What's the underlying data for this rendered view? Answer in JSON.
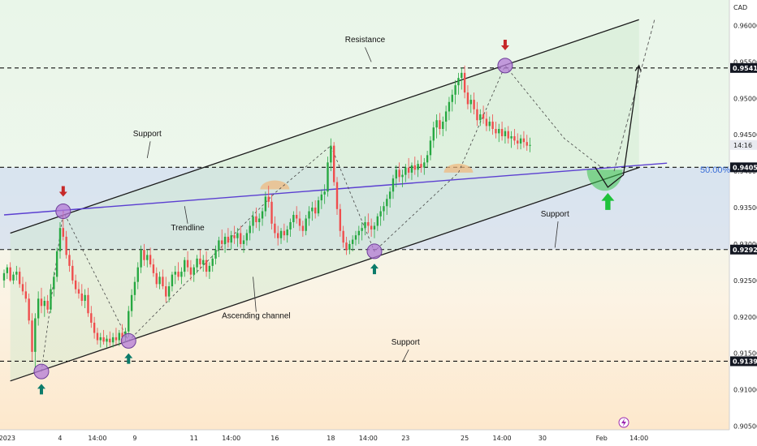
{
  "chart_data": {
    "type": "candlestick",
    "currency": "CAD",
    "ylim": [
      0.9045,
      0.9635
    ],
    "y_ticks": [
      0.96,
      0.955,
      0.95,
      0.945,
      0.94,
      0.935,
      0.93,
      0.925,
      0.92,
      0.915,
      0.91,
      0.905
    ],
    "y_tick_labels": [
      "0.96000",
      "0.95500",
      "0.95000",
      "0.94500",
      "0.94000",
      "0.93500",
      "0.93000",
      "0.92500",
      "0.92000",
      "0.91500",
      "0.91000",
      "0.90500"
    ],
    "x_range": [
      0,
      220
    ],
    "x_ticks": [
      {
        "x": 1,
        "label": "2023"
      },
      {
        "x": 18,
        "label": "4"
      },
      {
        "x": 30,
        "label": "14:00"
      },
      {
        "x": 42,
        "label": "9"
      },
      {
        "x": 61,
        "label": "11"
      },
      {
        "x": 73,
        "label": "14:00"
      },
      {
        "x": 87,
        "label": "16"
      },
      {
        "x": 105,
        "label": "18"
      },
      {
        "x": 117,
        "label": "14:00"
      },
      {
        "x": 129,
        "label": "23"
      },
      {
        "x": 148,
        "label": "25"
      },
      {
        "x": 160,
        "label": "14:00"
      },
      {
        "x": 173,
        "label": "30"
      },
      {
        "x": 192,
        "label": "Feb"
      },
      {
        "x": 204,
        "label": "14:00"
      }
    ],
    "price_tags": [
      {
        "value": 0.95417,
        "label": "0.95417",
        "style": "dark"
      },
      {
        "value": 0.94053,
        "label": "0.94053",
        "style": "dark"
      },
      {
        "value": 0.92924,
        "label": "0.92924",
        "style": "dark"
      },
      {
        "value": 0.91391,
        "label": "0.91391",
        "style": "dark"
      }
    ],
    "current_time_tag": {
      "value": 0.9436,
      "label": "14:16"
    },
    "horizontal_levels": [
      0.95417,
      0.94053,
      0.92924,
      0.91391
    ],
    "fib_level": {
      "value": 0.94025,
      "label": "50.00%"
    },
    "channel": {
      "upper": [
        [
          2,
          0.9315
        ],
        [
          204,
          0.9608
        ]
      ],
      "lower": [
        [
          2,
          0.9112
        ],
        [
          204,
          0.9405
        ]
      ]
    },
    "trendline": [
      [
        0,
        0.934
      ],
      [
        213,
        0.9411
      ]
    ],
    "annotations": [
      {
        "text": "Resistance",
        "x": 116,
        "y": 0.9577
      },
      {
        "text": "Support",
        "x": 46,
        "y": 0.9448
      },
      {
        "text": "Trendline",
        "x": 59,
        "y": 0.9319
      },
      {
        "text": "Ascending channel",
        "x": 81,
        "y": 0.9198
      },
      {
        "text": "Support",
        "x": 129,
        "y": 0.9162
      },
      {
        "text": "Support",
        "x": 177,
        "y": 0.9338
      }
    ],
    "candles": [
      [
        0.925,
        0.9265,
        0.924,
        0.926
      ],
      [
        0.926,
        0.9272,
        0.9252,
        0.9268
      ],
      [
        0.9268,
        0.9275,
        0.9248,
        0.925
      ],
      [
        0.925,
        0.9262,
        0.9245,
        0.9258
      ],
      [
        0.9258,
        0.927,
        0.925,
        0.9262
      ],
      [
        0.9262,
        0.9268,
        0.924,
        0.9245
      ],
      [
        0.9245,
        0.9255,
        0.923,
        0.9235
      ],
      [
        0.9235,
        0.9248,
        0.922,
        0.9225
      ],
      [
        0.9225,
        0.9232,
        0.919,
        0.9195
      ],
      [
        0.9195,
        0.9205,
        0.914,
        0.9152
      ],
      [
        0.9152,
        0.9205,
        0.913,
        0.9198
      ],
      [
        0.9198,
        0.9235,
        0.9188,
        0.9225
      ],
      [
        0.9225,
        0.924,
        0.9205,
        0.9215
      ],
      [
        0.9215,
        0.9228,
        0.92,
        0.9222
      ],
      [
        0.9222,
        0.923,
        0.9205,
        0.921
      ],
      [
        0.921,
        0.9245,
        0.9205,
        0.9238
      ],
      [
        0.9238,
        0.9262,
        0.9228,
        0.9255
      ],
      [
        0.9255,
        0.9295,
        0.9248,
        0.929
      ],
      [
        0.929,
        0.933,
        0.928,
        0.9322
      ],
      [
        0.9322,
        0.9345,
        0.9305,
        0.931
      ],
      [
        0.931,
        0.9318,
        0.928,
        0.9285
      ],
      [
        0.9285,
        0.9292,
        0.9262,
        0.927
      ],
      [
        0.927,
        0.9278,
        0.9245,
        0.925
      ],
      [
        0.925,
        0.9258,
        0.9232,
        0.9238
      ],
      [
        0.9238,
        0.9248,
        0.9225,
        0.9232
      ],
      [
        0.9232,
        0.9245,
        0.9215,
        0.9222
      ],
      [
        0.9222,
        0.9238,
        0.9212,
        0.923
      ],
      [
        0.923,
        0.924,
        0.92,
        0.9205
      ],
      [
        0.9205,
        0.9215,
        0.9185,
        0.9192
      ],
      [
        0.9192,
        0.92,
        0.917,
        0.9178
      ],
      [
        0.9178,
        0.9185,
        0.9162,
        0.9168
      ],
      [
        0.9168,
        0.9178,
        0.9158,
        0.9172
      ],
      [
        0.9172,
        0.9182,
        0.9162,
        0.9166
      ],
      [
        0.9166,
        0.9175,
        0.9158,
        0.917
      ],
      [
        0.917,
        0.918,
        0.916,
        0.9165
      ],
      [
        0.9165,
        0.9178,
        0.9158,
        0.9172
      ],
      [
        0.9172,
        0.9185,
        0.9162,
        0.9168
      ],
      [
        0.9168,
        0.9182,
        0.916,
        0.9178
      ],
      [
        0.9178,
        0.919,
        0.9165,
        0.9172
      ],
      [
        0.9172,
        0.9185,
        0.9165,
        0.918
      ],
      [
        0.918,
        0.9215,
        0.9172,
        0.9208
      ],
      [
        0.9208,
        0.9238,
        0.92,
        0.923
      ],
      [
        0.923,
        0.9255,
        0.9222,
        0.9248
      ],
      [
        0.9248,
        0.9275,
        0.9238,
        0.9268
      ],
      [
        0.9268,
        0.9298,
        0.926,
        0.9292
      ],
      [
        0.9292,
        0.93,
        0.927,
        0.9278
      ],
      [
        0.9278,
        0.9292,
        0.9268,
        0.9285
      ],
      [
        0.9285,
        0.9295,
        0.9268,
        0.9272
      ],
      [
        0.9272,
        0.928,
        0.9255,
        0.926
      ],
      [
        0.926,
        0.9268,
        0.924,
        0.9245
      ],
      [
        0.9245,
        0.9262,
        0.9238,
        0.9255
      ],
      [
        0.9255,
        0.9265,
        0.9238,
        0.9242
      ],
      [
        0.9242,
        0.9255,
        0.922,
        0.9228
      ],
      [
        0.9228,
        0.9248,
        0.922,
        0.9242
      ],
      [
        0.9242,
        0.9262,
        0.9235,
        0.9258
      ],
      [
        0.9258,
        0.927,
        0.9245,
        0.9262
      ],
      [
        0.9262,
        0.9275,
        0.925,
        0.9255
      ],
      [
        0.9255,
        0.9268,
        0.9245,
        0.9262
      ],
      [
        0.9262,
        0.9282,
        0.9255,
        0.9278
      ],
      [
        0.9278,
        0.929,
        0.9262,
        0.9268
      ],
      [
        0.9268,
        0.9278,
        0.925,
        0.9258
      ],
      [
        0.9258,
        0.9272,
        0.9248,
        0.9268
      ],
      [
        0.9268,
        0.9285,
        0.926,
        0.928
      ],
      [
        0.928,
        0.9292,
        0.9265,
        0.9272
      ],
      [
        0.9272,
        0.9285,
        0.9262,
        0.9278
      ],
      [
        0.9278,
        0.929,
        0.9255,
        0.9262
      ],
      [
        0.9262,
        0.9275,
        0.9252,
        0.927
      ],
      [
        0.927,
        0.9285,
        0.9262,
        0.928
      ],
      [
        0.928,
        0.9298,
        0.9272,
        0.9292
      ],
      [
        0.9292,
        0.931,
        0.9282,
        0.9305
      ],
      [
        0.9305,
        0.932,
        0.9292,
        0.93
      ],
      [
        0.93,
        0.9315,
        0.9288,
        0.931
      ],
      [
        0.931,
        0.9322,
        0.9295,
        0.9302
      ],
      [
        0.9302,
        0.9318,
        0.9292,
        0.9312
      ],
      [
        0.9312,
        0.9325,
        0.93,
        0.9308
      ],
      [
        0.9308,
        0.9322,
        0.9296,
        0.9315
      ],
      [
        0.9315,
        0.9325,
        0.9295,
        0.93
      ],
      [
        0.93,
        0.9312,
        0.9288,
        0.9305
      ],
      [
        0.9305,
        0.932,
        0.9298,
        0.9315
      ],
      [
        0.9315,
        0.9332,
        0.9305,
        0.9325
      ],
      [
        0.9325,
        0.9345,
        0.9315,
        0.9338
      ],
      [
        0.9338,
        0.935,
        0.9322,
        0.933
      ],
      [
        0.933,
        0.9342,
        0.9318,
        0.9335
      ],
      [
        0.9335,
        0.935,
        0.9325,
        0.9345
      ],
      [
        0.9345,
        0.9372,
        0.9338,
        0.9365
      ],
      [
        0.9365,
        0.938,
        0.935,
        0.9358
      ],
      [
        0.9358,
        0.9368,
        0.932,
        0.9328
      ],
      [
        0.9328,
        0.9338,
        0.9308,
        0.9315
      ],
      [
        0.9315,
        0.9325,
        0.9298,
        0.9308
      ],
      [
        0.9308,
        0.9322,
        0.93,
        0.9318
      ],
      [
        0.9318,
        0.9328,
        0.9305,
        0.9312
      ],
      [
        0.9312,
        0.9325,
        0.9302,
        0.932
      ],
      [
        0.932,
        0.9335,
        0.931,
        0.933
      ],
      [
        0.933,
        0.9345,
        0.9322,
        0.934
      ],
      [
        0.934,
        0.9352,
        0.9328,
        0.9335
      ],
      [
        0.9335,
        0.9345,
        0.9318,
        0.9325
      ],
      [
        0.9325,
        0.9332,
        0.931,
        0.9318
      ],
      [
        0.9318,
        0.934,
        0.9312,
        0.9335
      ],
      [
        0.9335,
        0.9352,
        0.9325,
        0.9345
      ],
      [
        0.9345,
        0.9358,
        0.9332,
        0.935
      ],
      [
        0.935,
        0.936,
        0.9335,
        0.9342
      ],
      [
        0.9342,
        0.9365,
        0.9338,
        0.936
      ],
      [
        0.936,
        0.9375,
        0.9348,
        0.9368
      ],
      [
        0.9368,
        0.9382,
        0.9355,
        0.9372
      ],
      [
        0.9372,
        0.942,
        0.9365,
        0.9412
      ],
      [
        0.9412,
        0.9445,
        0.94,
        0.9435
      ],
      [
        0.9435,
        0.944,
        0.938,
        0.9385
      ],
      [
        0.9385,
        0.9392,
        0.934,
        0.9348
      ],
      [
        0.9348,
        0.9355,
        0.931,
        0.9318
      ],
      [
        0.9318,
        0.9325,
        0.9295,
        0.9302
      ],
      [
        0.9302,
        0.931,
        0.9285,
        0.9292
      ],
      [
        0.9292,
        0.9305,
        0.9286,
        0.93
      ],
      [
        0.93,
        0.9312,
        0.929,
        0.9306
      ],
      [
        0.9306,
        0.9318,
        0.9298,
        0.9312
      ],
      [
        0.9312,
        0.9325,
        0.93,
        0.9318
      ],
      [
        0.9318,
        0.933,
        0.9305,
        0.9322
      ],
      [
        0.9322,
        0.9338,
        0.9312,
        0.933
      ],
      [
        0.933,
        0.9342,
        0.9315,
        0.9325
      ],
      [
        0.9325,
        0.9335,
        0.931,
        0.932
      ],
      [
        0.932,
        0.933,
        0.9308,
        0.9325
      ],
      [
        0.9325,
        0.9342,
        0.9318,
        0.9338
      ],
      [
        0.9338,
        0.9352,
        0.9325,
        0.9345
      ],
      [
        0.9345,
        0.9358,
        0.9332,
        0.9352
      ],
      [
        0.9352,
        0.9368,
        0.934,
        0.9362
      ],
      [
        0.9362,
        0.9378,
        0.935,
        0.9372
      ],
      [
        0.9372,
        0.9395,
        0.9362,
        0.939
      ],
      [
        0.939,
        0.9408,
        0.9378,
        0.9402
      ],
      [
        0.9402,
        0.9412,
        0.9385,
        0.9392
      ],
      [
        0.9392,
        0.9402,
        0.9378,
        0.9395
      ],
      [
        0.9395,
        0.941,
        0.9385,
        0.9405
      ],
      [
        0.9405,
        0.9418,
        0.939,
        0.9398
      ],
      [
        0.9398,
        0.9412,
        0.9388,
        0.9408
      ],
      [
        0.9408,
        0.942,
        0.9395,
        0.9402
      ],
      [
        0.9402,
        0.9415,
        0.9392,
        0.941
      ],
      [
        0.941,
        0.9422,
        0.9398,
        0.9405
      ],
      [
        0.9405,
        0.9418,
        0.9395,
        0.9412
      ],
      [
        0.9412,
        0.9428,
        0.9405,
        0.9422
      ],
      [
        0.9422,
        0.9448,
        0.9415,
        0.9442
      ],
      [
        0.9442,
        0.9468,
        0.9432,
        0.946
      ],
      [
        0.946,
        0.9478,
        0.9445,
        0.947
      ],
      [
        0.947,
        0.948,
        0.945,
        0.9458
      ],
      [
        0.9458,
        0.9475,
        0.9448,
        0.9468
      ],
      [
        0.9468,
        0.949,
        0.9455,
        0.9482
      ],
      [
        0.9482,
        0.9502,
        0.947,
        0.9495
      ],
      [
        0.9495,
        0.9512,
        0.9482,
        0.9505
      ],
      [
        0.9505,
        0.9525,
        0.9492,
        0.9518
      ],
      [
        0.9518,
        0.9535,
        0.9505,
        0.9528
      ],
      [
        0.9528,
        0.9542,
        0.9512,
        0.9535
      ],
      [
        0.9535,
        0.9545,
        0.95,
        0.9508
      ],
      [
        0.9508,
        0.9518,
        0.9485,
        0.9492
      ],
      [
        0.9492,
        0.9505,
        0.948,
        0.9498
      ],
      [
        0.9498,
        0.9508,
        0.9478,
        0.9485
      ],
      [
        0.9485,
        0.9495,
        0.9462,
        0.947
      ],
      [
        0.947,
        0.9485,
        0.9462,
        0.9478
      ],
      [
        0.9478,
        0.949,
        0.9465,
        0.9472
      ],
      [
        0.9472,
        0.9482,
        0.9455,
        0.9462
      ],
      [
        0.9462,
        0.9475,
        0.9455,
        0.9468
      ],
      [
        0.9468,
        0.9478,
        0.945,
        0.9458
      ],
      [
        0.9458,
        0.9468,
        0.9445,
        0.9452
      ],
      [
        0.9452,
        0.9465,
        0.944,
        0.9458
      ],
      [
        0.9458,
        0.9468,
        0.9442,
        0.9448
      ],
      [
        0.9448,
        0.946,
        0.9438,
        0.9455
      ],
      [
        0.9455,
        0.9462,
        0.9438,
        0.9445
      ],
      [
        0.9445,
        0.9455,
        0.9432,
        0.9448
      ],
      [
        0.9448,
        0.9458,
        0.9436,
        0.9442
      ],
      [
        0.9442,
        0.9452,
        0.943,
        0.9438
      ],
      [
        0.9438,
        0.945,
        0.943,
        0.9445
      ],
      [
        0.9445,
        0.9455,
        0.9432,
        0.944
      ],
      [
        0.944,
        0.945,
        0.9428,
        0.9435
      ],
      [
        0.9435,
        0.9446,
        0.9426,
        0.9436
      ]
    ],
    "candle_x_start": 0,
    "candle_x_step": 1,
    "pivots": [
      {
        "kind": "low",
        "x": 12,
        "y": 0.9125
      },
      {
        "kind": "high",
        "x": 19,
        "y": 0.9345
      },
      {
        "kind": "low",
        "x": 40,
        "y": 0.9167
      },
      {
        "kind": "low",
        "x": 119,
        "y": 0.929
      },
      {
        "kind": "high",
        "x": 161,
        "y": 0.9545
      }
    ],
    "arrows": [
      {
        "dir": "up",
        "x": 12,
        "y": 0.9108,
        "color": "#0b7b6a"
      },
      {
        "dir": "down",
        "x": 19,
        "y": 0.9365,
        "color": "#c62828"
      },
      {
        "dir": "up",
        "x": 40,
        "y": 0.915,
        "color": "#0b7b6a"
      },
      {
        "dir": "up",
        "x": 119,
        "y": 0.9273,
        "color": "#0b7b6a"
      },
      {
        "dir": "down",
        "x": 161,
        "y": 0.9566,
        "color": "#c62828"
      },
      {
        "dir": "up",
        "x": 194,
        "y": 0.937,
        "color": "#1fc23a"
      }
    ],
    "projection": [
      [
        190,
        0.9405
      ],
      [
        194,
        0.9378
      ],
      [
        199,
        0.9395
      ],
      [
        204,
        0.9545
      ]
    ],
    "projection_dashed": [
      [
        196,
        0.94
      ],
      [
        209,
        0.9608
      ]
    ]
  },
  "bottom_icon": "lightning-icon"
}
